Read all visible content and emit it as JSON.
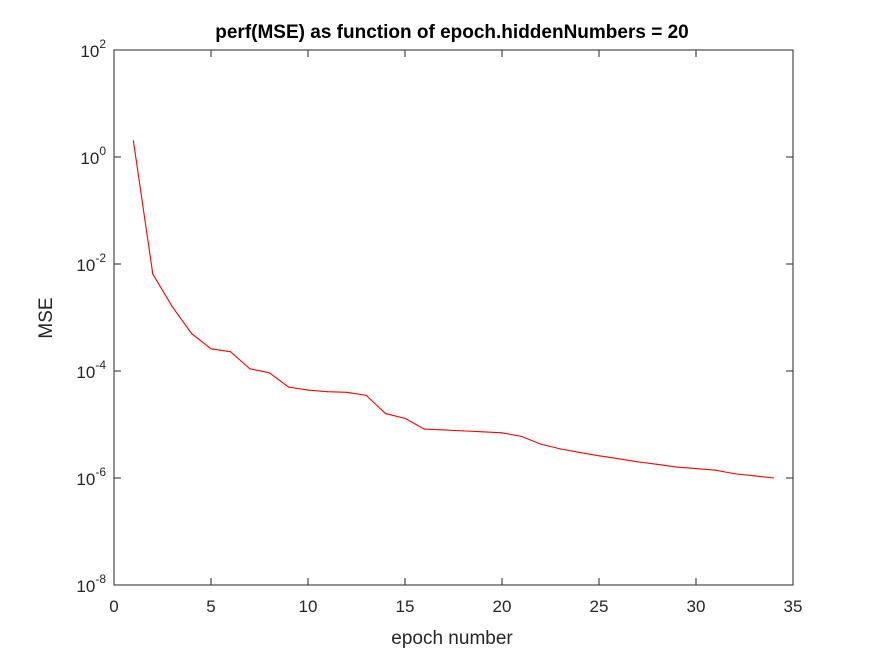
{
  "chart_data": {
    "type": "line",
    "title": "perf(MSE) as function of epoch.hiddenNumbers = 20",
    "xlabel": "epoch number",
    "ylabel": "MSE",
    "xlim": [
      0,
      35
    ],
    "ylim": [
      1e-08,
      100
    ],
    "yscale": "log",
    "grid": false,
    "x_ticks": [
      0,
      5,
      10,
      15,
      20,
      25,
      30,
      35
    ],
    "y_ticks": [
      {
        "base": "10",
        "exp": "-8",
        "value": 1e-08
      },
      {
        "base": "10",
        "exp": "-6",
        "value": 1e-06
      },
      {
        "base": "10",
        "exp": "-4",
        "value": 0.0001
      },
      {
        "base": "10",
        "exp": "-2",
        "value": 0.01
      },
      {
        "base": "10",
        "exp": "0",
        "value": 1
      },
      {
        "base": "10",
        "exp": "2",
        "value": 100
      }
    ],
    "series": [
      {
        "color": "#ff0000",
        "x": [
          1,
          2,
          3,
          4,
          5,
          6,
          7,
          8,
          9,
          10,
          11,
          12,
          13,
          14,
          15,
          16,
          17,
          18,
          19,
          20,
          21,
          22,
          23,
          24,
          25,
          26,
          27,
          28,
          29,
          30,
          31,
          32,
          33,
          34
        ],
        "y": [
          2.0,
          0.0065,
          0.0016,
          0.0005,
          0.00026,
          0.00023,
          0.00011,
          9.3e-05,
          5e-05,
          4.4e-05,
          4.1e-05,
          4e-05,
          3.5e-05,
          1.6e-05,
          1.3e-05,
          8.2e-06,
          7.9e-06,
          7.6e-06,
          7.3e-06,
          7e-06,
          6e-06,
          4.3e-06,
          3.5e-06,
          3e-06,
          2.6e-06,
          2.3e-06,
          2e-06,
          1.8e-06,
          1.6e-06,
          1.5e-06,
          1.4e-06,
          1.2e-06,
          1.1e-06,
          1e-06
        ]
      }
    ]
  }
}
